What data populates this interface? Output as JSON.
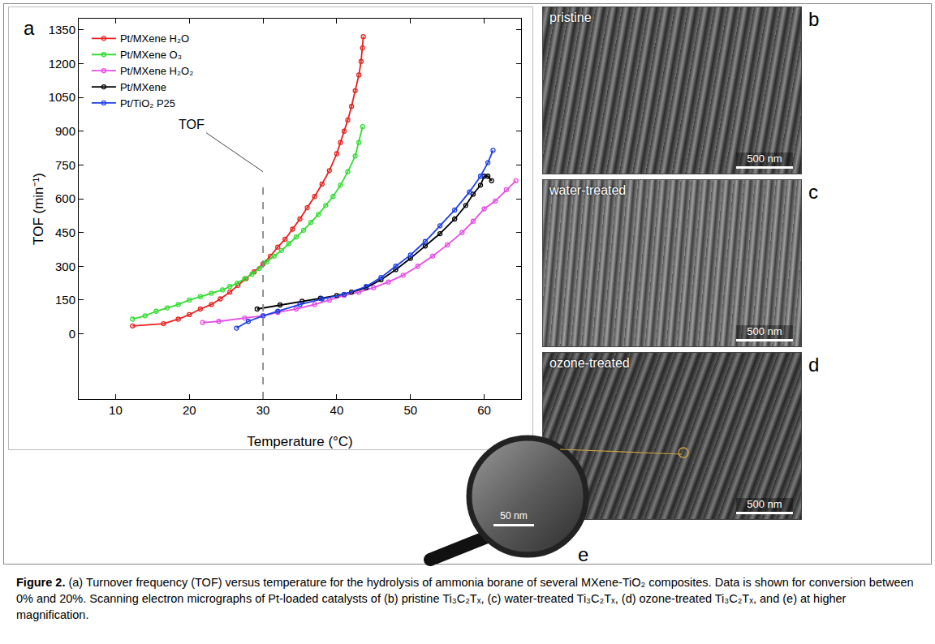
{
  "chart_data": {
    "type": "line",
    "marker": "circle-open",
    "x_label": "Temperature (°C)",
    "y_label": "TOF (min⁻¹)",
    "xlim": [
      5,
      65
    ],
    "xticks": [
      10,
      20,
      30,
      40,
      50,
      60
    ],
    "ylim": [
      -290,
      1400
    ],
    "yticks": [
      0,
      150,
      300,
      450,
      600,
      750,
      900,
      1050,
      1200,
      1350
    ],
    "grid": false,
    "legend": "top left",
    "reference_line": {
      "x": 30,
      "y_end": 670,
      "line_style": "dashed"
    },
    "annotations": [
      {
        "text": "TOF",
        "x": 30,
        "y": 720
      }
    ],
    "series": [
      {
        "name": "Pt/MXene H₂O",
        "color": "#e8211e",
        "x": [
          12.3,
          16.5,
          18.5,
          20,
          21.5,
          23,
          24.2,
          25.5,
          26.6,
          27.7,
          28.8,
          30,
          31,
          32,
          33,
          34,
          35,
          36,
          37,
          38,
          39,
          40,
          40.5,
          41,
          41.5,
          42,
          42.5,
          43,
          43.3,
          43.5,
          43.6
        ],
        "values": [
          35,
          45,
          65,
          85,
          110,
          130,
          155,
          185,
          215,
          245,
          275,
          310,
          345,
          385,
          420,
          465,
          510,
          560,
          610,
          665,
          725,
          800,
          850,
          900,
          950,
          1010,
          1080,
          1150,
          1210,
          1270,
          1320
        ]
      },
      {
        "name": "Pt/MXene O₃",
        "color": "#33dd33",
        "x": [
          12.3,
          14,
          15.5,
          17,
          18.5,
          20,
          21.5,
          23,
          24.5,
          25.5,
          26.5,
          27.5,
          28.5,
          29.5,
          30.5,
          31.5,
          32.5,
          33.5,
          34.5,
          35.5,
          36.5,
          37.5,
          38.5,
          39.5,
          40.5,
          41.5,
          42.5,
          43,
          43.5
        ],
        "values": [
          65,
          80,
          100,
          115,
          130,
          150,
          165,
          180,
          195,
          210,
          225,
          245,
          265,
          290,
          320,
          345,
          370,
          400,
          430,
          460,
          495,
          530,
          570,
          610,
          660,
          720,
          790,
          850,
          920
        ]
      },
      {
        "name": "Pt/MXene H₂O₂",
        "color": "#e64ce6",
        "x": [
          21.8,
          24,
          27.5,
          30,
          32,
          34.5,
          37,
          39,
          41,
          43,
          45,
          47,
          49,
          51,
          53,
          55,
          57,
          58.5,
          60,
          61.5,
          63,
          64.3
        ],
        "values": [
          50,
          55,
          70,
          80,
          95,
          110,
          130,
          150,
          170,
          185,
          205,
          230,
          260,
          300,
          345,
          395,
          450,
          500,
          555,
          590,
          640,
          680
        ]
      },
      {
        "name": "Pt/MXene",
        "color": "#000000",
        "x": [
          29.2,
          32.3,
          35.3,
          37.8,
          40,
          42,
          44,
          46,
          48,
          50,
          52,
          54,
          56,
          57.5,
          58.5,
          59.5,
          60,
          60.5,
          61
        ],
        "values": [
          110,
          128,
          145,
          158,
          170,
          185,
          205,
          240,
          285,
          335,
          390,
          445,
          510,
          570,
          620,
          660,
          700,
          700,
          680
        ]
      },
      {
        "name": "Pt/TiO₂ P25",
        "color": "#1f3fe6",
        "x": [
          26.4,
          28,
          30,
          32,
          35,
          38,
          41,
          44,
          46,
          48,
          50,
          52,
          54,
          56,
          58,
          59.5,
          60.5,
          61.2
        ],
        "values": [
          25,
          55,
          80,
          100,
          130,
          155,
          175,
          210,
          250,
          300,
          350,
          410,
          480,
          550,
          630,
          700,
          760,
          815
        ]
      }
    ]
  },
  "figure": {
    "chart_letter": "a",
    "micrographs": [
      {
        "letter": "b",
        "label": "pristine",
        "scale": "500 nm"
      },
      {
        "letter": "c",
        "label": "water-treated",
        "scale": "500 nm"
      },
      {
        "letter": "d",
        "label": "ozone-treated",
        "scale": "500 nm"
      },
      {
        "letter": "e",
        "scale": "50 nm"
      }
    ],
    "caption": {
      "label": "Figure 2.",
      "text": "(a) Turnover frequency (TOF) versus temperature for the hydrolysis of ammonia borane of several MXene-TiO₂ composites. Data is shown for conversion between 0% and 20%. Scanning electron micrographs of Pt-loaded catalysts of (b) pristine Ti₃C₂Tₓ, (c) water-treated Ti₃C₂Tₓ, (d) ozone-treated Ti₃C₂Tₓ, and (e) at higher magnification."
    }
  }
}
